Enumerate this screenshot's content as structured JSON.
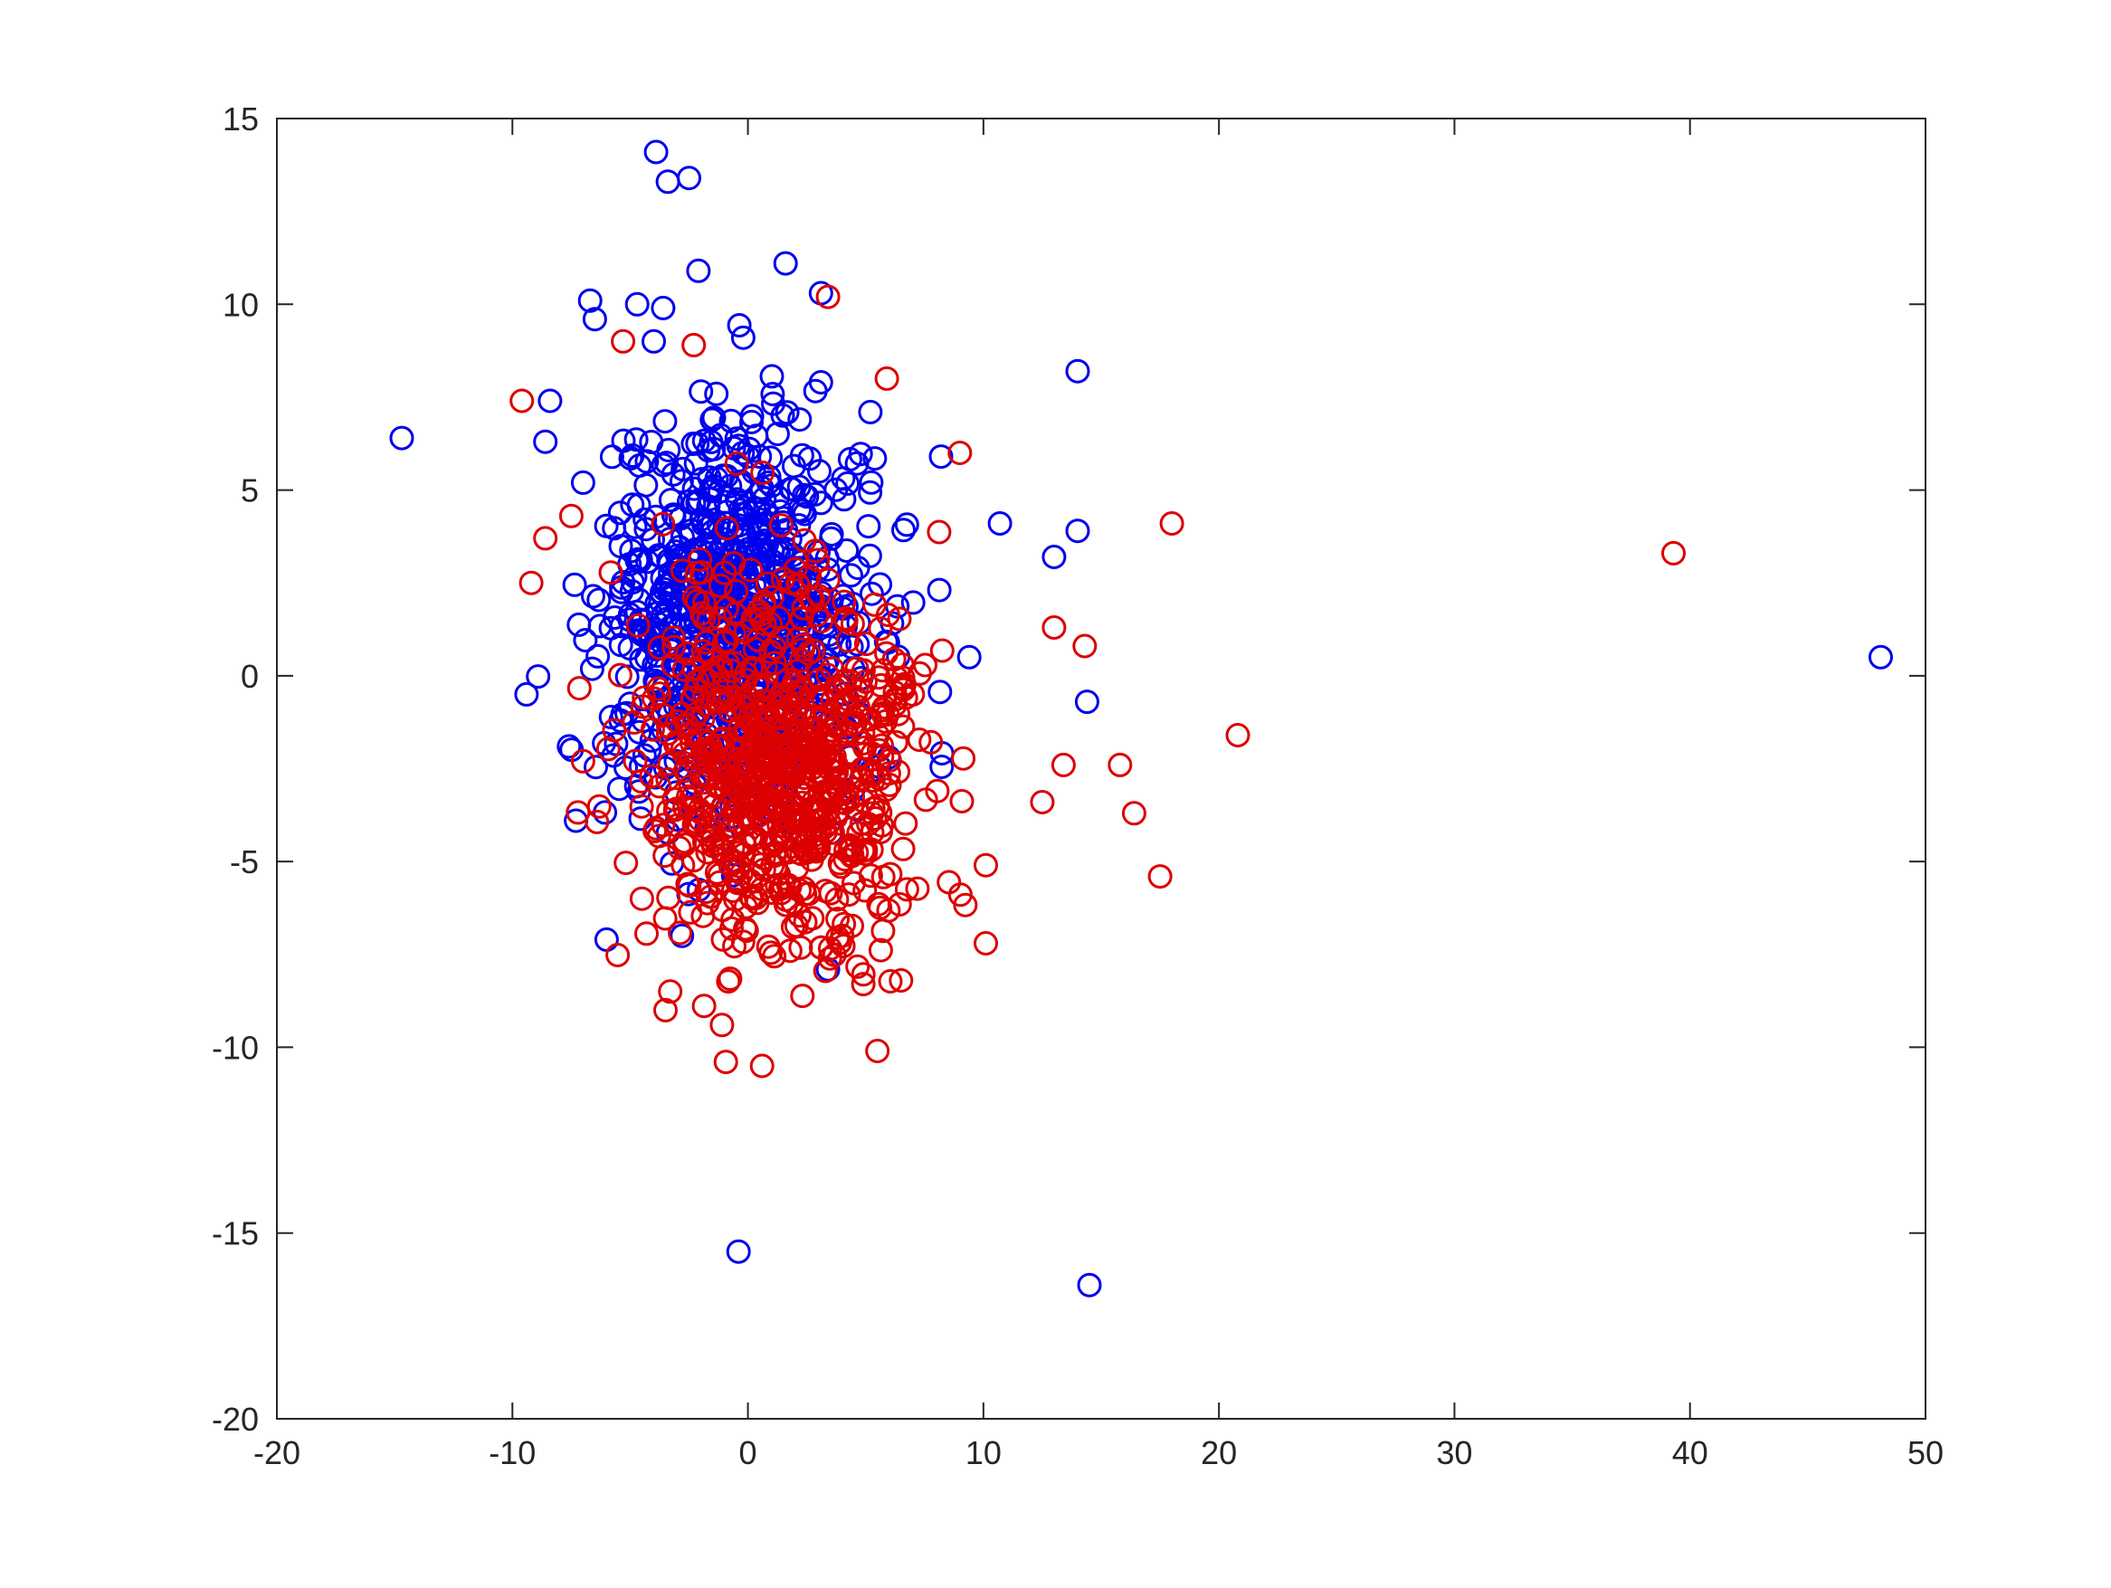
{
  "chart_data": {
    "type": "scatter",
    "title": "",
    "xlabel": "",
    "ylabel": "",
    "xlim": [
      -20,
      50
    ],
    "ylim": [
      -20,
      15
    ],
    "xticks": [
      -20,
      -10,
      0,
      10,
      20,
      30,
      40,
      50
    ],
    "yticks": [
      -20,
      -15,
      -10,
      -5,
      0,
      5,
      10,
      15
    ],
    "xtick_labels": [
      "-20",
      "-10",
      "0",
      "10",
      "20",
      "30",
      "40",
      "50"
    ],
    "ytick_labels": [
      "-20",
      "-15",
      "-10",
      "-5",
      "0",
      "5",
      "10",
      "15"
    ],
    "grid": false,
    "marker": "open-circle",
    "series": [
      {
        "color": "#0000ee",
        "outliers": [
          [
            -14.7,
            6.4
          ],
          [
            -3.9,
            14.1
          ],
          [
            -3.4,
            13.3
          ],
          [
            -2.5,
            13.4
          ],
          [
            -2.1,
            10.9
          ],
          [
            1.6,
            11.1
          ],
          [
            3.1,
            10.3
          ],
          [
            -6.7,
            10.1
          ],
          [
            -6.5,
            9.6
          ],
          [
            -4.7,
            10.0
          ],
          [
            -3.6,
            9.9
          ],
          [
            -0.2,
            9.1
          ],
          [
            -4.0,
            9.0
          ],
          [
            14.0,
            8.2
          ],
          [
            -8.4,
            7.4
          ],
          [
            -8.6,
            6.3
          ],
          [
            9.4,
            0.5
          ],
          [
            48.1,
            0.5
          ],
          [
            -9.4,
            -0.5
          ],
          [
            -6.0,
            -7.1
          ],
          [
            -0.4,
            -15.5
          ],
          [
            14.5,
            -16.4
          ],
          [
            10.7,
            4.1
          ],
          [
            13.0,
            3.2
          ],
          [
            14.0,
            3.9
          ],
          [
            14.4,
            -0.7
          ],
          [
            8.2,
            5.9
          ],
          [
            2.2,
            6.9
          ],
          [
            5.2,
            7.1
          ],
          [
            3.1,
            7.9
          ],
          [
            -7.0,
            5.2
          ],
          [
            -7.6,
            -1.9
          ],
          [
            -7.3,
            -3.9
          ],
          [
            3.4,
            -7.9
          ],
          [
            -2.8,
            -7.0
          ]
        ],
        "cluster": {
          "center": [
            -0.5,
            1.5
          ],
          "spread": [
            2.8,
            2.6
          ],
          "count": 780,
          "seed": 7
        }
      },
      {
        "color": "#dd0000",
        "outliers": [
          [
            -9.6,
            7.4
          ],
          [
            3.4,
            10.2
          ],
          [
            -2.3,
            8.9
          ],
          [
            -5.3,
            9.0
          ],
          [
            5.9,
            8.0
          ],
          [
            9.0,
            6.0
          ],
          [
            18.0,
            4.1
          ],
          [
            39.3,
            3.3
          ],
          [
            20.8,
            -1.6
          ],
          [
            17.5,
            -5.4
          ],
          [
            16.4,
            -3.7
          ],
          [
            15.8,
            -2.4
          ],
          [
            13.4,
            -2.4
          ],
          [
            12.5,
            -3.4
          ],
          [
            13.0,
            1.3
          ],
          [
            14.3,
            0.8
          ],
          [
            10.1,
            -5.1
          ],
          [
            10.1,
            -7.2
          ],
          [
            5.5,
            -10.1
          ],
          [
            0.6,
            -10.5
          ],
          [
            -1.1,
            -9.4
          ],
          [
            -3.5,
            -9.0
          ],
          [
            6.5,
            -8.2
          ],
          [
            4.9,
            -8.3
          ],
          [
            -9.2,
            2.5
          ],
          [
            -8.6,
            3.7
          ],
          [
            -7.5,
            4.3
          ],
          [
            -7.0,
            -2.3
          ],
          [
            -4.5,
            -6.0
          ],
          [
            -3.3,
            -8.5
          ]
        ],
        "cluster": {
          "center": [
            1.5,
            -2.5
          ],
          "spread": [
            3.0,
            2.4
          ],
          "count": 780,
          "seed": 13
        }
      }
    ]
  }
}
